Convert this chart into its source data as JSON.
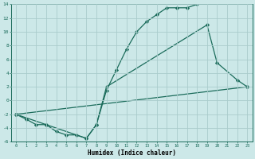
{
  "title": "",
  "xlabel": "Humidex (Indice chaleur)",
  "bg_color": "#cce8e8",
  "grid_color": "#aacccc",
  "line_color": "#1a6b5a",
  "xlim": [
    -0.5,
    23.5
  ],
  "ylim": [
    -6,
    14
  ],
  "xticks": [
    0,
    1,
    2,
    3,
    4,
    5,
    6,
    7,
    8,
    9,
    10,
    11,
    12,
    13,
    14,
    15,
    16,
    17,
    18,
    19,
    20,
    21,
    22,
    23
  ],
  "yticks": [
    -6,
    -4,
    -2,
    0,
    2,
    4,
    6,
    8,
    10,
    12,
    14
  ],
  "line1_x": [
    0,
    1,
    2,
    3,
    4,
    5,
    6,
    7,
    8,
    9,
    10,
    11,
    12,
    13,
    14,
    15,
    16,
    17,
    18
  ],
  "line1_y": [
    -2,
    -2.7,
    -3.5,
    -3.5,
    -4.5,
    -5.0,
    -5.0,
    -5.5,
    -3.5,
    1.5,
    4.5,
    7.5,
    10.0,
    11.5,
    12.5,
    13.5,
    13.5,
    13.5,
    14.0
  ],
  "line2_x": [
    0,
    3,
    7,
    8,
    9,
    19,
    20,
    22,
    23
  ],
  "line2_y": [
    -2,
    -3.5,
    -5.5,
    -3.5,
    2.0,
    11.0,
    5.5,
    3.0,
    2.0
  ],
  "line3_x": [
    0,
    23
  ],
  "line3_y": [
    -2,
    2.0
  ]
}
